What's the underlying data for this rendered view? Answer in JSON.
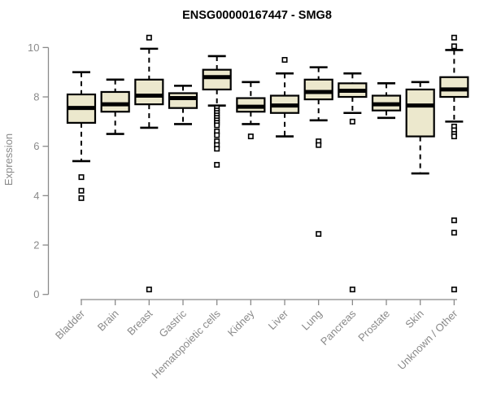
{
  "chart_data": {
    "type": "boxplot",
    "title": "ENSG00000167447 - SMG8",
    "xlabel": "",
    "ylabel": "Expression",
    "ylim": [
      0,
      10
    ],
    "yticks": [
      0,
      2,
      4,
      6,
      8,
      10
    ],
    "grid": false,
    "legend": "none",
    "colors": {
      "box_fill": "#ece8cd",
      "box_stroke": "#000000",
      "median": "#000000",
      "whisker": "#000000",
      "axis": "#8a8a8a",
      "tick_label": "#8a8a8a",
      "title": "#000000",
      "background": "#ffffff"
    },
    "categories": [
      "Bladder",
      "Brain",
      "Breast",
      "Gastric",
      "Hematopoietic cells",
      "Kidney",
      "Liver",
      "Lung",
      "Pancreas",
      "Prostate",
      "Skin",
      "Unknown / Other"
    ],
    "series": [
      {
        "label": "Bladder",
        "whisker_low": 5.4,
        "q1": 6.95,
        "median": 7.55,
        "q3": 8.1,
        "whisker_high": 9.0,
        "outliers": [
          4.75,
          4.2,
          3.9
        ]
      },
      {
        "label": "Brain",
        "whisker_low": 6.5,
        "q1": 7.4,
        "median": 7.7,
        "q3": 8.2,
        "whisker_high": 8.7,
        "outliers": []
      },
      {
        "label": "Breast",
        "whisker_low": 6.75,
        "q1": 7.7,
        "median": 8.05,
        "q3": 8.7,
        "whisker_high": 9.95,
        "outliers": [
          10.4,
          0.2
        ]
      },
      {
        "label": "Gastric",
        "whisker_low": 6.9,
        "q1": 7.55,
        "median": 7.95,
        "q3": 8.15,
        "whisker_high": 8.45,
        "outliers": []
      },
      {
        "label": "Hematopoietic cells",
        "whisker_low": 7.65,
        "q1": 8.3,
        "median": 8.8,
        "q3": 9.1,
        "whisker_high": 9.65,
        "outliers": [
          7.55,
          7.45,
          7.35,
          7.25,
          7.15,
          7.05,
          6.95,
          6.85,
          6.6,
          6.45,
          6.2,
          6.05,
          5.9,
          5.25
        ]
      },
      {
        "label": "Kidney",
        "whisker_low": 6.9,
        "q1": 7.4,
        "median": 7.6,
        "q3": 7.95,
        "whisker_high": 8.6,
        "outliers": [
          6.4
        ]
      },
      {
        "label": "Liver",
        "whisker_low": 6.4,
        "q1": 7.35,
        "median": 7.65,
        "q3": 8.05,
        "whisker_high": 8.95,
        "outliers": [
          9.5
        ]
      },
      {
        "label": "Lung",
        "whisker_low": 7.05,
        "q1": 7.9,
        "median": 8.2,
        "q3": 8.7,
        "whisker_high": 9.2,
        "outliers": [
          6.2,
          6.05,
          2.45
        ]
      },
      {
        "label": "Pancreas",
        "whisker_low": 7.35,
        "q1": 8.0,
        "median": 8.25,
        "q3": 8.55,
        "whisker_high": 8.95,
        "outliers": [
          7.0,
          0.2
        ]
      },
      {
        "label": "Prostate",
        "whisker_low": 7.15,
        "q1": 7.45,
        "median": 7.7,
        "q3": 8.05,
        "whisker_high": 8.55,
        "outliers": []
      },
      {
        "label": "Skin",
        "whisker_low": 4.9,
        "q1": 6.4,
        "median": 7.65,
        "q3": 8.3,
        "whisker_high": 8.6,
        "outliers": []
      },
      {
        "label": "Unknown / Other",
        "whisker_low": 7.0,
        "q1": 8.0,
        "median": 8.3,
        "q3": 8.8,
        "whisker_high": 9.9,
        "outliers": [
          10.4,
          10.05,
          6.8,
          6.65,
          6.5,
          6.4,
          3.0,
          2.5,
          0.2
        ]
      }
    ]
  }
}
